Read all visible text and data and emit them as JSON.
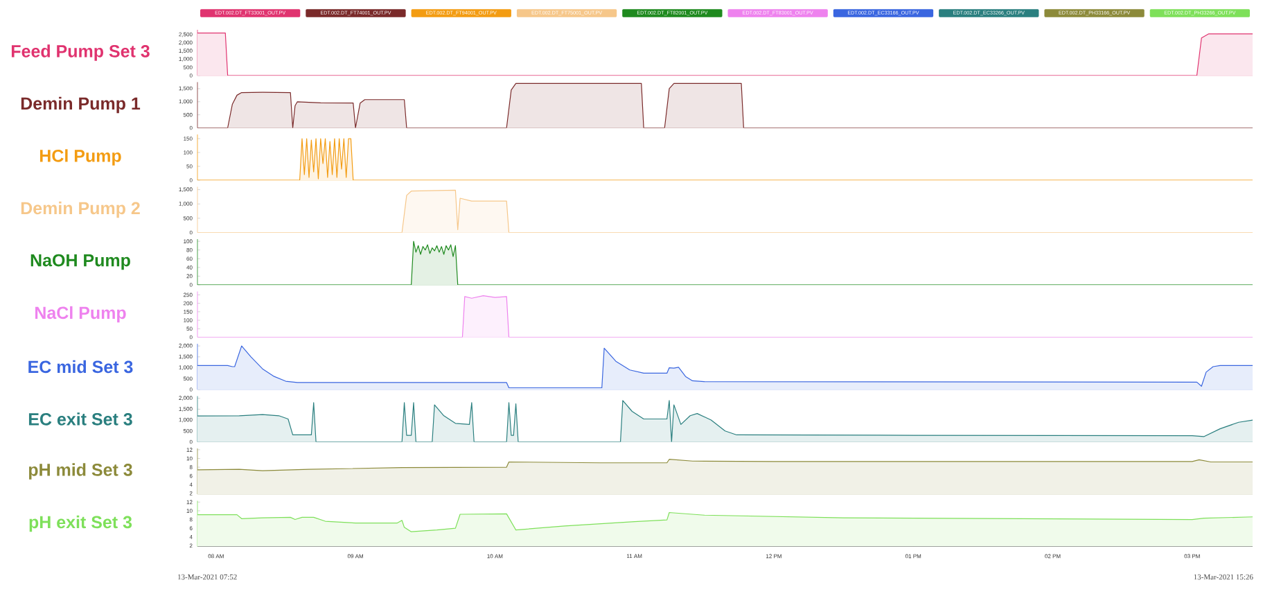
{
  "chart_data": [
    {
      "type": "area",
      "ylabel": "Feed Pump Set 3",
      "legend": "top",
      "tick_labels": "y",
      "xlim": [
        "2021-03-13T07:52",
        "2021-03-13T15:26"
      ],
      "ylim": [
        0,
        2800
      ],
      "yticks": [
        0,
        500,
        {
          "value": 1000,
          "label": "1,000"
        },
        {
          "value": 1500,
          "label": "1,500"
        },
        {
          "value": 2000,
          "label": "2,000"
        },
        {
          "value": 2500,
          "label": "2,500"
        }
      ],
      "series": [
        {
          "name": "EDT.002.DT_FT33001_OUT.PV",
          "color": "#e0336f",
          "x": [
            "2021-03-13T07:52",
            "2021-03-13T08:04",
            "2021-03-13T08:05",
            "2021-03-13T15:02",
            "2021-03-13T15:04",
            "2021-03-13T15:07",
            "2021-03-13T15:26"
          ],
          "values": [
            2600,
            2600,
            0,
            0,
            2300,
            2550,
            2550
          ]
        }
      ]
    },
    {
      "type": "area",
      "ylabel": "Demin Pump 1",
      "legend": "top",
      "tick_labels": "y",
      "xlim": [
        "2021-03-13T07:52",
        "2021-03-13T15:26"
      ],
      "ylim": [
        0,
        1750
      ],
      "yticks": [
        0,
        500,
        {
          "value": 1000,
          "label": "1,000"
        },
        {
          "value": 1500,
          "label": "1,500"
        }
      ],
      "series": [
        {
          "name": "EDT.002.DT_FT74001_OUT.PV",
          "color": "#7a2a2a",
          "x": [
            "2021-03-13T07:52",
            "2021-03-13T08:05",
            "2021-03-13T08:07",
            "2021-03-13T08:09",
            "2021-03-13T08:11",
            "2021-03-13T08:20",
            "2021-03-13T08:32",
            "2021-03-13T08:33",
            "2021-03-13T08:34",
            "2021-03-13T08:35",
            "2021-03-13T08:45",
            "2021-03-13T08:59",
            "2021-03-13T09:00",
            "2021-03-13T09:02",
            "2021-03-13T09:04",
            "2021-03-13T09:21",
            "2021-03-13T09:22",
            "2021-03-13T10:05",
            "2021-03-13T10:07",
            "2021-03-13T10:09",
            "2021-03-13T10:30",
            "2021-03-13T11:03",
            "2021-03-13T11:04",
            "2021-03-13T11:13",
            "2021-03-13T11:15",
            "2021-03-13T11:17",
            "2021-03-13T11:30",
            "2021-03-13T11:46",
            "2021-03-13T11:47",
            "2021-03-13T15:26"
          ],
          "values": [
            0,
            0,
            900,
            1250,
            1350,
            1360,
            1350,
            0,
            850,
            1000,
            960,
            950,
            0,
            950,
            1080,
            1080,
            0,
            0,
            1450,
            1700,
            1700,
            1700,
            0,
            0,
            1500,
            1700,
            1700,
            1700,
            0,
            0
          ]
        }
      ]
    },
    {
      "type": "area",
      "ylabel": "HCl Pump",
      "legend": "top",
      "tick_labels": "y",
      "xlim": [
        "2021-03-13T07:52",
        "2021-03-13T15:26"
      ],
      "ylim": [
        0,
        165
      ],
      "yticks": [
        0,
        50,
        100,
        150
      ],
      "series": [
        {
          "name": "EDT.002.DT_FT94001_OUT.PV",
          "color": "#f39c12",
          "x": [
            "2021-03-13T07:52",
            "2021-03-13T08:36",
            "2021-03-13T08:37",
            "2021-03-13T08:38",
            "2021-03-13T08:39",
            "2021-03-13T08:40",
            "2021-03-13T08:41",
            "2021-03-13T08:42",
            "2021-03-13T08:43",
            "2021-03-13T08:44",
            "2021-03-13T08:45",
            "2021-03-13T08:46",
            "2021-03-13T08:47",
            "2021-03-13T08:48",
            "2021-03-13T08:49",
            "2021-03-13T08:50",
            "2021-03-13T08:51",
            "2021-03-13T08:52",
            "2021-03-13T08:53",
            "2021-03-13T08:54",
            "2021-03-13T08:55",
            "2021-03-13T08:56",
            "2021-03-13T08:57",
            "2021-03-13T08:58",
            "2021-03-13T08:59",
            "2021-03-13T15:26"
          ],
          "values": [
            0,
            0,
            150,
            20,
            150,
            10,
            145,
            30,
            150,
            5,
            150,
            60,
            150,
            10,
            140,
            20,
            150,
            10,
            150,
            40,
            150,
            10,
            150,
            150,
            0,
            0
          ]
        }
      ]
    },
    {
      "type": "area",
      "ylabel": "Demin Pump 2",
      "legend": "top",
      "tick_labels": "y",
      "xlim": [
        "2021-03-13T07:52",
        "2021-03-13T15:26"
      ],
      "ylim": [
        0,
        1600
      ],
      "yticks": [
        0,
        500,
        {
          "value": 1000,
          "label": "1,000"
        },
        {
          "value": 1500,
          "label": "1,500"
        }
      ],
      "series": [
        {
          "name": "EDT.002.DT_FT75001_OUT.PV",
          "color": "#f6c78a",
          "x": [
            "2021-03-13T07:52",
            "2021-03-13T09:20",
            "2021-03-13T09:22",
            "2021-03-13T09:24",
            "2021-03-13T09:43",
            "2021-03-13T09:44",
            "2021-03-13T09:45",
            "2021-03-13T09:50",
            "2021-03-13T10:05",
            "2021-03-13T10:06",
            "2021-03-13T15:26"
          ],
          "values": [
            0,
            0,
            1300,
            1450,
            1480,
            100,
            1200,
            1100,
            1100,
            0,
            0
          ]
        }
      ]
    },
    {
      "type": "area",
      "ylabel": "NaOH Pump",
      "legend": "top",
      "tick_labels": "y",
      "xlim": [
        "2021-03-13T07:52",
        "2021-03-13T15:26"
      ],
      "ylim": [
        0,
        105
      ],
      "yticks": [
        0,
        20,
        40,
        60,
        80,
        100
      ],
      "series": [
        {
          "name": "EDT.002.DT_FT82001_OUT.PV",
          "color": "#1f8a1f",
          "x": [
            "2021-03-13T07:52",
            "2021-03-13T09:24",
            "2021-03-13T09:25",
            "2021-03-13T09:26",
            "2021-03-13T09:27",
            "2021-03-13T09:28",
            "2021-03-13T09:29",
            "2021-03-13T09:30",
            "2021-03-13T09:31",
            "2021-03-13T09:32",
            "2021-03-13T09:33",
            "2021-03-13T09:34",
            "2021-03-13T09:35",
            "2021-03-13T09:36",
            "2021-03-13T09:37",
            "2021-03-13T09:38",
            "2021-03-13T09:39",
            "2021-03-13T09:40",
            "2021-03-13T09:41",
            "2021-03-13T09:42",
            "2021-03-13T09:43",
            "2021-03-13T09:44",
            "2021-03-13T15:26"
          ],
          "values": [
            0,
            0,
            100,
            75,
            90,
            70,
            88,
            80,
            92,
            72,
            85,
            78,
            90,
            75,
            88,
            70,
            90,
            80,
            92,
            65,
            90,
            0,
            0
          ]
        }
      ]
    },
    {
      "type": "area",
      "ylabel": "NaCl Pump",
      "legend": "top",
      "tick_labels": "y",
      "xlim": [
        "2021-03-13T07:52",
        "2021-03-13T15:26"
      ],
      "ylim": [
        0,
        270
      ],
      "yticks": [
        0,
        50,
        100,
        150,
        200,
        250
      ],
      "series": [
        {
          "name": "EDT.002.DT_FT83001_OUT.PV",
          "color": "#ee82ee",
          "x": [
            "2021-03-13T07:52",
            "2021-03-13T09:46",
            "2021-03-13T09:47",
            "2021-03-13T09:50",
            "2021-03-13T09:55",
            "2021-03-13T10:00",
            "2021-03-13T10:05",
            "2021-03-13T10:06",
            "2021-03-13T15:26"
          ],
          "values": [
            0,
            0,
            240,
            230,
            245,
            235,
            240,
            0,
            0
          ]
        }
      ]
    },
    {
      "type": "area",
      "ylabel": "EC mid Set 3",
      "legend": "top",
      "tick_labels": "y",
      "xlim": [
        "2021-03-13T07:52",
        "2021-03-13T15:26"
      ],
      "ylim": [
        0,
        2100
      ],
      "yticks": [
        0,
        500,
        {
          "value": 1000,
          "label": "1,000"
        },
        {
          "value": 1500,
          "label": "1,500"
        },
        {
          "value": 2000,
          "label": "2,000"
        }
      ],
      "series": [
        {
          "name": "EDT.002.DT_EC33166_OUT.PV",
          "color": "#3a66e0",
          "x": [
            "2021-03-13T07:52",
            "2021-03-13T08:05",
            "2021-03-13T08:07",
            "2021-03-13T08:08",
            "2021-03-13T08:11",
            "2021-03-13T08:15",
            "2021-03-13T08:20",
            "2021-03-13T08:25",
            "2021-03-13T08:30",
            "2021-03-13T08:35",
            "2021-03-13T10:05",
            "2021-03-13T10:06",
            "2021-03-13T10:46",
            "2021-03-13T10:47",
            "2021-03-13T10:52",
            "2021-03-13T10:58",
            "2021-03-13T11:04",
            "2021-03-13T11:14",
            "2021-03-13T11:15",
            "2021-03-13T11:17",
            "2021-03-13T11:19",
            "2021-03-13T11:22",
            "2021-03-13T11:25",
            "2021-03-13T11:30",
            "2021-03-13T15:02",
            "2021-03-13T15:04",
            "2021-03-13T15:06",
            "2021-03-13T15:09",
            "2021-03-13T15:12",
            "2021-03-13T15:26"
          ],
          "values": [
            1100,
            1100,
            1050,
            1050,
            2000,
            1500,
            950,
            600,
            380,
            320,
            320,
            80,
            80,
            1900,
            1300,
            900,
            750,
            750,
            1000,
            980,
            1020,
            600,
            400,
            360,
            340,
            150,
            800,
            1050,
            1100,
            1100
          ]
        }
      ]
    },
    {
      "type": "area",
      "ylabel": "EC exit Set 3",
      "legend": "top",
      "tick_labels": "y",
      "xlim": [
        "2021-03-13T07:52",
        "2021-03-13T15:26"
      ],
      "ylim": [
        0,
        2100
      ],
      "yticks": [
        0,
        500,
        {
          "value": 1000,
          "label": "1,000"
        },
        {
          "value": 1500,
          "label": "1,500"
        },
        {
          "value": 2000,
          "label": "2,000"
        }
      ],
      "series": [
        {
          "name": "EDT.002.DT_EC33266_OUT.PV",
          "color": "#2a7f7f",
          "x": [
            "2021-03-13T07:52",
            "2021-03-13T08:10",
            "2021-03-13T08:20",
            "2021-03-13T08:27",
            "2021-03-13T08:31",
            "2021-03-13T08:33",
            "2021-03-13T08:41",
            "2021-03-13T08:42",
            "2021-03-13T08:43",
            "2021-03-13T09:20",
            "2021-03-13T09:21",
            "2021-03-13T09:22",
            "2021-03-13T09:24",
            "2021-03-13T09:25",
            "2021-03-13T09:26",
            "2021-03-13T09:33",
            "2021-03-13T09:34",
            "2021-03-13T09:38",
            "2021-03-13T09:43",
            "2021-03-13T09:49",
            "2021-03-13T09:50",
            "2021-03-13T09:51",
            "2021-03-13T10:05",
            "2021-03-13T10:06",
            "2021-03-13T10:07",
            "2021-03-13T10:08",
            "2021-03-13T10:09",
            "2021-03-13T10:10",
            "2021-03-13T10:54",
            "2021-03-13T10:55",
            "2021-03-13T10:59",
            "2021-03-13T11:04",
            "2021-03-13T11:14",
            "2021-03-13T11:15",
            "2021-03-13T11:16",
            "2021-03-13T11:17",
            "2021-03-13T11:20",
            "2021-03-13T11:24",
            "2021-03-13T11:27",
            "2021-03-13T11:33",
            "2021-03-13T11:39",
            "2021-03-13T11:44",
            "2021-03-13T13:00",
            "2021-03-13T15:00",
            "2021-03-13T15:05",
            "2021-03-13T15:12",
            "2021-03-13T15:20",
            "2021-03-13T15:26"
          ],
          "values": [
            1190,
            1200,
            1250,
            1200,
            1050,
            320,
            320,
            1800,
            0,
            0,
            1800,
            300,
            300,
            1800,
            0,
            0,
            1700,
            1200,
            850,
            800,
            1800,
            0,
            0,
            1800,
            300,
            300,
            1750,
            0,
            0,
            1900,
            1400,
            1050,
            1050,
            1900,
            0,
            1700,
            800,
            1200,
            1300,
            1000,
            500,
            320,
            300,
            280,
            240,
            600,
            900,
            1000
          ]
        }
      ]
    },
    {
      "type": "area",
      "ylabel": "pH mid Set 3",
      "legend": "top",
      "tick_labels": "y",
      "xlim": [
        "2021-03-13T07:52",
        "2021-03-13T15:26"
      ],
      "ylim": [
        1.8,
        12.3
      ],
      "yticks": [
        2,
        4,
        6,
        8,
        10,
        12
      ],
      "series": [
        {
          "name": "EDT.002.DT_PH33166_OUT.PV",
          "color": "#8c8a3a",
          "x": [
            "2021-03-13T07:52",
            "2021-03-13T08:10",
            "2021-03-13T08:20",
            "2021-03-13T08:40",
            "2021-03-13T09:20",
            "2021-03-13T10:05",
            "2021-03-13T10:06",
            "2021-03-13T10:45",
            "2021-03-13T11:14",
            "2021-03-13T11:15",
            "2021-03-13T11:25",
            "2021-03-13T12:00",
            "2021-03-13T15:00",
            "2021-03-13T15:03",
            "2021-03-13T15:08",
            "2021-03-13T15:26"
          ],
          "values": [
            7.4,
            7.5,
            7.2,
            7.5,
            7.9,
            8.0,
            9.2,
            9.0,
            9.0,
            9.8,
            9.4,
            9.3,
            9.3,
            9.7,
            9.2,
            9.2
          ]
        }
      ]
    },
    {
      "type": "area",
      "ylabel": "pH exit Set 3",
      "legend": "top",
      "xlim": [
        "2021-03-13T07:52",
        "2021-03-13T15:26"
      ],
      "ylim": [
        1.8,
        12.3
      ],
      "yticks": [
        2,
        4,
        6,
        8,
        10,
        12
      ],
      "xticks": [
        {
          "value": "2021-03-13T08:00",
          "label": "08 AM"
        },
        {
          "value": "2021-03-13T09:00",
          "label": "09 AM"
        },
        {
          "value": "2021-03-13T10:00",
          "label": "10 AM"
        },
        {
          "value": "2021-03-13T11:00",
          "label": "11 AM"
        },
        {
          "value": "2021-03-13T12:00",
          "label": "12 PM"
        },
        {
          "value": "2021-03-13T13:00",
          "label": "01 PM"
        },
        {
          "value": "2021-03-13T14:00",
          "label": "02 PM"
        },
        {
          "value": "2021-03-13T15:00",
          "label": "03 PM"
        }
      ],
      "annotations": [
        "13-Mar-2021 07:52",
        "13-Mar-2021 15:26"
      ],
      "series": [
        {
          "name": "EDT.002.DT_PH33266_OUT.PV",
          "color": "#7ee05a",
          "x": [
            "2021-03-13T07:52",
            "2021-03-13T08:09",
            "2021-03-13T08:11",
            "2021-03-13T08:20",
            "2021-03-13T08:32",
            "2021-03-13T08:34",
            "2021-03-13T08:37",
            "2021-03-13T08:42",
            "2021-03-13T08:47",
            "2021-03-13T09:00",
            "2021-03-13T09:18",
            "2021-03-13T09:20",
            "2021-03-13T09:21",
            "2021-03-13T09:24",
            "2021-03-13T09:35",
            "2021-03-13T09:43",
            "2021-03-13T09:45",
            "2021-03-13T10:05",
            "2021-03-13T10:09",
            "2021-03-13T10:30",
            "2021-03-13T11:00",
            "2021-03-13T11:14",
            "2021-03-13T11:15",
            "2021-03-13T11:30",
            "2021-03-13T12:30",
            "2021-03-13T15:00",
            "2021-03-13T15:05",
            "2021-03-13T15:26"
          ],
          "values": [
            9.1,
            9.1,
            8.2,
            8.4,
            8.5,
            8.0,
            8.5,
            8.5,
            7.6,
            7.2,
            7.2,
            7.8,
            6.2,
            5.2,
            5.6,
            6.0,
            9.2,
            9.3,
            5.6,
            6.5,
            7.5,
            7.9,
            9.6,
            9.0,
            8.4,
            8.0,
            8.3,
            8.6
          ]
        }
      ]
    }
  ]
}
